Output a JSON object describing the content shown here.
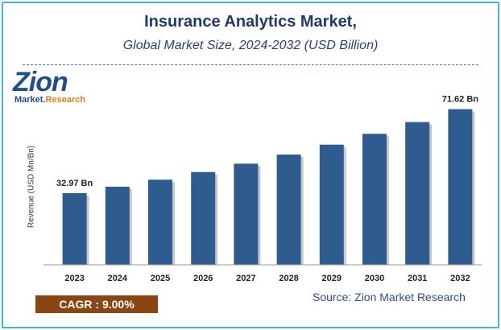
{
  "header": {
    "title": "Insurance Analytics Market,",
    "subtitle": "Global Market Size, 2024-2032 (USD Billion)"
  },
  "logo": {
    "name": "Zion",
    "sub_prefix": "Market.",
    "sub_accent": "Research"
  },
  "footer": {
    "cagr": "CAGR : 9.00%",
    "source": "Source: Zion Market Research"
  },
  "colors": {
    "bar": "#2e5c8e",
    "bar_shadow": "#c9c9c9",
    "frame": "#3fb6d2",
    "title": "#1f3a68",
    "cagr_bg": "#8b4513"
  },
  "chart_data": {
    "type": "bar",
    "title": "Insurance Analytics Market,",
    "subtitle": "Global Market Size, 2024-2032 (USD Billion)",
    "xlabel": "",
    "ylabel": "Revenue (USD Mn/Bn)",
    "categories": [
      "2023",
      "2024",
      "2025",
      "2026",
      "2027",
      "2028",
      "2029",
      "2030",
      "2031",
      "2032"
    ],
    "values": [
      32.97,
      35.94,
      39.17,
      42.69,
      46.53,
      50.72,
      55.29,
      60.27,
      65.69,
      71.62
    ],
    "data_labels": [
      {
        "index": 0,
        "text": "32.97 Bn"
      },
      {
        "index": 9,
        "text": "71.62 Bn"
      }
    ],
    "ylim": [
      0,
      80
    ],
    "grid": false,
    "legend": "none"
  }
}
